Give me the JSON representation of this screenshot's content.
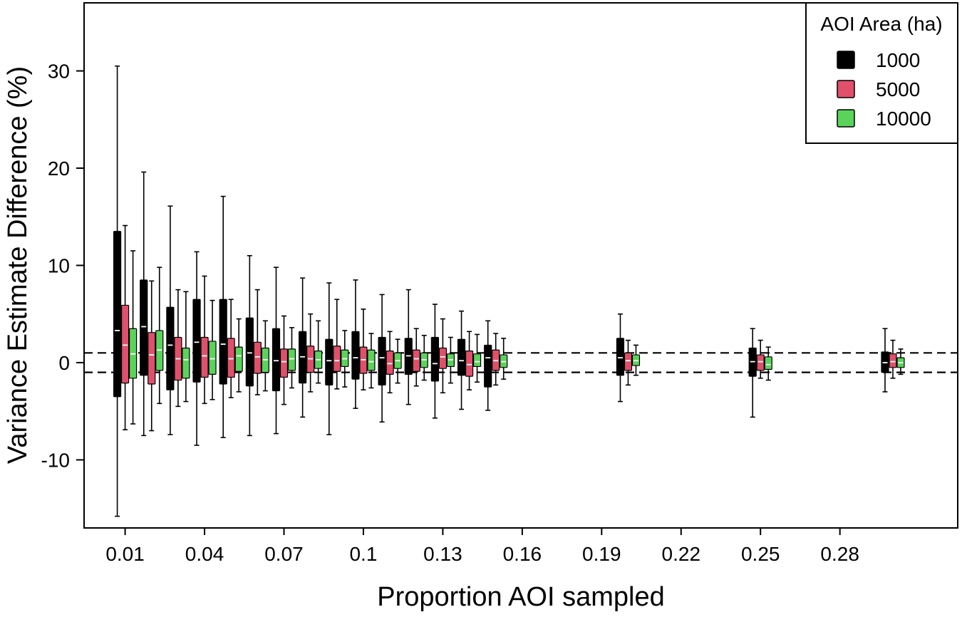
{
  "chart_data": {
    "type": "boxplot",
    "title": "",
    "xlabel": "Proportion AOI sampled",
    "ylabel": "Variance Estimate Difference (%)",
    "xlim": [
      -0.0055,
      0.3245
    ],
    "ylim": [
      -17,
      37
    ],
    "x_ticks": [
      0.01,
      0.04,
      0.07,
      0.1,
      0.13,
      0.16,
      0.19,
      0.22,
      0.25,
      0.28
    ],
    "x_tick_labels": [
      "0.01",
      "0.04",
      "0.07",
      "0.1",
      "0.13",
      "0.16",
      "0.19",
      "0.22",
      "0.25",
      "0.28"
    ],
    "y_ticks": [
      -10,
      0,
      10,
      20,
      30
    ],
    "y_tick_labels": [
      "-10",
      "0",
      "10",
      "20",
      "30"
    ],
    "reference_lines": [
      1,
      -1
    ],
    "grid": false,
    "legend": {
      "title": "AOI Area (ha)",
      "position": "top-right",
      "entries": [
        "1000",
        "5000",
        "10000"
      ]
    },
    "series": [
      {
        "name": "1000",
        "color": "#000000",
        "median_color": "#ffffff",
        "boxes": [
          {
            "x": 0.01,
            "min": -15.8,
            "q1": -3.5,
            "median": 3.3,
            "q3": 13.5,
            "max": 30.5
          },
          {
            "x": 0.02,
            "min": -7.5,
            "q1": -1.3,
            "median": 3.7,
            "q3": 8.5,
            "max": 19.6
          },
          {
            "x": 0.03,
            "min": -7.4,
            "q1": -2.8,
            "median": 1.8,
            "q3": 5.7,
            "max": 16.1
          },
          {
            "x": 0.04,
            "min": -8.5,
            "q1": -2.0,
            "median": 2.1,
            "q3": 6.5,
            "max": 11.4
          },
          {
            "x": 0.05,
            "min": -7.7,
            "q1": -2.2,
            "median": 1.9,
            "q3": 6.5,
            "max": 17.1
          },
          {
            "x": 0.06,
            "min": -7.5,
            "q1": -2.4,
            "median": 1.0,
            "q3": 4.6,
            "max": 11.0
          },
          {
            "x": 0.07,
            "min": -7.3,
            "q1": -2.9,
            "median": 0.2,
            "q3": 3.5,
            "max": 9.8
          },
          {
            "x": 0.08,
            "min": -5.6,
            "q1": -2.1,
            "median": 0.6,
            "q3": 3.2,
            "max": 8.7
          },
          {
            "x": 0.09,
            "min": -7.4,
            "q1": -2.3,
            "median": 0.2,
            "q3": 2.4,
            "max": 8.2
          },
          {
            "x": 0.1,
            "min": -4.7,
            "q1": -1.7,
            "median": 0.5,
            "q3": 3.2,
            "max": 8.5
          },
          {
            "x": 0.11,
            "min": -6.1,
            "q1": -2.3,
            "median": 0.5,
            "q3": 2.6,
            "max": 7.0
          },
          {
            "x": 0.12,
            "min": -4.3,
            "q1": -1.2,
            "median": 0.7,
            "q3": 2.5,
            "max": 7.5
          },
          {
            "x": 0.13,
            "min": -5.7,
            "q1": -1.9,
            "median": -0.1,
            "q3": 2.6,
            "max": 6.0
          },
          {
            "x": 0.14,
            "min": -4.8,
            "q1": -1.3,
            "median": 0.2,
            "q3": 2.4,
            "max": 5.3
          },
          {
            "x": 0.15,
            "min": -4.9,
            "q1": -2.5,
            "median": 0.5,
            "q3": 1.8,
            "max": 4.3
          },
          {
            "x": 0.2,
            "min": -4.0,
            "q1": -1.3,
            "median": 0.5,
            "q3": 2.5,
            "max": 5.0
          },
          {
            "x": 0.25,
            "min": -5.6,
            "q1": -1.4,
            "median": 0.1,
            "q3": 1.5,
            "max": 3.5
          },
          {
            "x": 0.3,
            "min": -3.0,
            "q1": -1.0,
            "median": 0.0,
            "q3": 1.1,
            "max": 3.5
          }
        ]
      },
      {
        "name": "5000",
        "color": "#e0506a",
        "median_color": "#ffffff",
        "boxes": [
          {
            "x": 0.01,
            "min": -6.9,
            "q1": -2.1,
            "median": 1.8,
            "q3": 5.9,
            "max": 14.1
          },
          {
            "x": 0.02,
            "min": -7.0,
            "q1": -2.2,
            "median": 0.8,
            "q3": 3.1,
            "max": 8.4
          },
          {
            "x": 0.03,
            "min": -4.5,
            "q1": -1.8,
            "median": 0.4,
            "q3": 2.6,
            "max": 7.5
          },
          {
            "x": 0.04,
            "min": -4.2,
            "q1": -1.5,
            "median": 0.7,
            "q3": 2.6,
            "max": 8.9
          },
          {
            "x": 0.05,
            "min": -3.6,
            "q1": -1.5,
            "median": 0.4,
            "q3": 2.5,
            "max": 6.5
          },
          {
            "x": 0.06,
            "min": -3.3,
            "q1": -1.1,
            "median": 0.6,
            "q3": 2.1,
            "max": 7.5
          },
          {
            "x": 0.07,
            "min": -4.3,
            "q1": -1.5,
            "median": 0.1,
            "q3": 1.4,
            "max": 4.8
          },
          {
            "x": 0.08,
            "min": -3.0,
            "q1": -1.0,
            "median": 0.4,
            "q3": 1.7,
            "max": 5.0
          },
          {
            "x": 0.09,
            "min": -2.7,
            "q1": -0.9,
            "median": 0.2,
            "q3": 1.7,
            "max": 6.5
          },
          {
            "x": 0.1,
            "min": -2.8,
            "q1": -1.1,
            "median": 0.3,
            "q3": 1.6,
            "max": 5.5
          },
          {
            "x": 0.11,
            "min": -3.1,
            "q1": -1.2,
            "median": -0.1,
            "q3": 1.2,
            "max": 3.2
          },
          {
            "x": 0.12,
            "min": -2.4,
            "q1": -0.9,
            "median": 0.4,
            "q3": 1.3,
            "max": 3.5
          },
          {
            "x": 0.13,
            "min": -3.1,
            "q1": -0.6,
            "median": 0.6,
            "q3": 1.5,
            "max": 4.5
          },
          {
            "x": 0.14,
            "min": -2.8,
            "q1": -1.4,
            "median": -0.2,
            "q3": 1.2,
            "max": 3.2
          },
          {
            "x": 0.15,
            "min": -2.3,
            "q1": -0.8,
            "median": 0.2,
            "q3": 1.3,
            "max": 3.0
          },
          {
            "x": 0.2,
            "min": -2.3,
            "q1": -0.8,
            "median": 0.2,
            "q3": 1.0,
            "max": 2.3
          },
          {
            "x": 0.25,
            "min": -1.6,
            "q1": -0.8,
            "median": 0.1,
            "q3": 0.8,
            "max": 2.3
          },
          {
            "x": 0.3,
            "min": -1.6,
            "q1": -0.5,
            "median": 0.1,
            "q3": 0.9,
            "max": 2.3
          }
        ]
      },
      {
        "name": "10000",
        "color": "#5ad35a",
        "median_color": "#ffffff",
        "boxes": [
          {
            "x": 0.01,
            "min": -6.3,
            "q1": -1.6,
            "median": 0.9,
            "q3": 3.5,
            "max": 11.5
          },
          {
            "x": 0.02,
            "min": -4.2,
            "q1": -0.8,
            "median": 1.3,
            "q3": 3.3,
            "max": 9.8
          },
          {
            "x": 0.03,
            "min": -4.0,
            "q1": -1.6,
            "median": 0.3,
            "q3": 1.5,
            "max": 7.3
          },
          {
            "x": 0.04,
            "min": -3.8,
            "q1": -1.2,
            "median": 0.4,
            "q3": 2.2,
            "max": 6.4
          },
          {
            "x": 0.05,
            "min": -3.0,
            "q1": -0.9,
            "median": 0.7,
            "q3": 1.6,
            "max": 4.5
          },
          {
            "x": 0.06,
            "min": -2.9,
            "q1": -1.0,
            "median": 0.3,
            "q3": 1.5,
            "max": 4.3
          },
          {
            "x": 0.07,
            "min": -2.6,
            "q1": -0.8,
            "median": 0.4,
            "q3": 1.4,
            "max": 3.6
          },
          {
            "x": 0.08,
            "min": -2.1,
            "q1": -0.6,
            "median": 0.3,
            "q3": 1.2,
            "max": 4.3
          },
          {
            "x": 0.09,
            "min": -2.5,
            "q1": -0.4,
            "median": 0.4,
            "q3": 1.3,
            "max": 3.3
          },
          {
            "x": 0.1,
            "min": -2.6,
            "q1": -0.8,
            "median": 0.1,
            "q3": 1.3,
            "max": 3.0
          },
          {
            "x": 0.11,
            "min": -2.1,
            "q1": -0.6,
            "median": 0.2,
            "q3": 1.0,
            "max": 2.4
          },
          {
            "x": 0.12,
            "min": -1.8,
            "q1": -0.5,
            "median": 0.3,
            "q3": 1.0,
            "max": 2.8
          },
          {
            "x": 0.13,
            "min": -2.1,
            "q1": -0.4,
            "median": 0.3,
            "q3": 0.9,
            "max": 2.6
          },
          {
            "x": 0.14,
            "min": -2.0,
            "q1": -0.4,
            "median": 0.1,
            "q3": 0.9,
            "max": 2.9
          },
          {
            "x": 0.15,
            "min": -1.7,
            "q1": -0.5,
            "median": 0.1,
            "q3": 0.8,
            "max": 2.5
          },
          {
            "x": 0.2,
            "min": -1.3,
            "q1": -0.3,
            "median": 0.2,
            "q3": 0.8,
            "max": 1.8
          },
          {
            "x": 0.25,
            "min": -1.8,
            "q1": -0.7,
            "median": -0.2,
            "q3": 0.6,
            "max": 1.6
          },
          {
            "x": 0.3,
            "min": -1.2,
            "q1": -0.5,
            "median": 0.0,
            "q3": 0.5,
            "max": 1.4
          }
        ]
      }
    ]
  }
}
